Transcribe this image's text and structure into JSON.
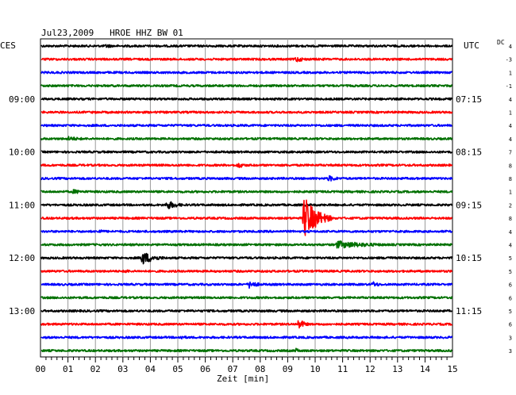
{
  "chart_data": {
    "type": "line",
    "title": "Jul23,2009   HROE HHZ BW 01",
    "left_timezone": "CES",
    "right_timezone": "UTC",
    "dc_label": "DC",
    "xlabel": "Zeit [min]",
    "x_ticks": [
      "00",
      "01",
      "02",
      "03",
      "04",
      "05",
      "06",
      "07",
      "08",
      "09",
      "10",
      "11",
      "12",
      "13",
      "14",
      "15"
    ],
    "xlim": [
      0,
      15
    ],
    "grid": true,
    "trace_colors": [
      "#000000",
      "#ff0000",
      "#0000ff",
      "#007000"
    ],
    "left_time_labels": [
      {
        "row": 4,
        "label": "09:00"
      },
      {
        "row": 8,
        "label": "10:00"
      },
      {
        "row": 12,
        "label": "11:00"
      },
      {
        "row": 16,
        "label": "12:00"
      },
      {
        "row": 20,
        "label": "13:00"
      }
    ],
    "right_time_labels": [
      {
        "row": 4,
        "label": "07:15"
      },
      {
        "row": 8,
        "label": "08:15"
      },
      {
        "row": 12,
        "label": "09:15"
      },
      {
        "row": 16,
        "label": "10:15"
      },
      {
        "row": 20,
        "label": "11:15"
      }
    ],
    "dc_values": [
      "4",
      "-3",
      "1",
      "-1",
      "4",
      "1",
      "4",
      "4",
      "7",
      "8",
      "8",
      "1",
      "2",
      "8",
      "4",
      "4",
      "5",
      "5",
      "6",
      "6",
      "5",
      "6",
      "3",
      "3"
    ],
    "events": [
      {
        "row": 0,
        "minute": 2.4,
        "amplitude": 3,
        "duration": 0.6
      },
      {
        "row": 1,
        "minute": 9.3,
        "amplitude": 4,
        "duration": 0.8
      },
      {
        "row": 7,
        "minute": 1.0,
        "amplitude": 3,
        "duration": 1.5
      },
      {
        "row": 9,
        "minute": 7.2,
        "amplitude": 4,
        "duration": 0.6
      },
      {
        "row": 10,
        "minute": 10.5,
        "amplitude": 4,
        "duration": 0.8
      },
      {
        "row": 11,
        "minute": 1.2,
        "amplitude": 3,
        "duration": 1.2
      },
      {
        "row": 12,
        "minute": 4.6,
        "amplitude": 6,
        "duration": 0.9
      },
      {
        "row": 13,
        "minute": 9.6,
        "amplitude": 28,
        "duration": 1.0
      },
      {
        "row": 14,
        "minute": 2.1,
        "amplitude": 3,
        "duration": 0.6
      },
      {
        "row": 15,
        "minute": 10.8,
        "amplitude": 5,
        "duration": 3.0
      },
      {
        "row": 16,
        "minute": 3.7,
        "amplitude": 9,
        "duration": 1.0
      },
      {
        "row": 16,
        "minute": 12.6,
        "amplitude": 3,
        "duration": 0.5
      },
      {
        "row": 17,
        "minute": 3.1,
        "amplitude": 3,
        "duration": 0.4
      },
      {
        "row": 18,
        "minute": 7.6,
        "amplitude": 5,
        "duration": 0.8
      },
      {
        "row": 18,
        "minute": 12.1,
        "amplitude": 4,
        "duration": 0.6
      },
      {
        "row": 21,
        "minute": 9.4,
        "amplitude": 7,
        "duration": 0.5
      },
      {
        "row": 22,
        "minute": 5.1,
        "amplitude": 3,
        "duration": 0.6
      },
      {
        "row": 23,
        "minute": 9.3,
        "amplitude": 3,
        "duration": 0.5
      }
    ]
  }
}
